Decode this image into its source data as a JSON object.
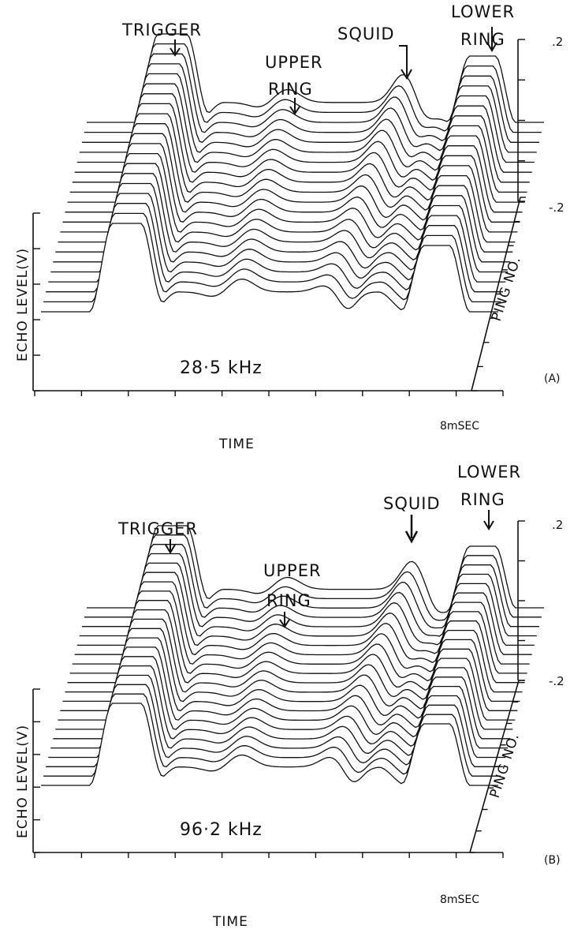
{
  "chart_data": [
    {
      "type": "waterfall-line",
      "panel_tag": "(A)",
      "frequency_label": "28·5 kHz",
      "xlabel": "TIME",
      "x_end_label": "8mSEC",
      "ylabel": "ECHO LEVEL(V)",
      "zlabel": "PING NO.",
      "y_ticks": [
        ".2",
        "-.2"
      ],
      "annotations": {
        "trigger": "TRIGGER",
        "upper_ring": [
          "UPPER",
          "RING"
        ],
        "squid": "SQUID",
        "lower_ring": [
          "LOWER",
          "RING"
        ]
      },
      "pings": 20,
      "peaks": {
        "trigger": {
          "time_ms": 1.4,
          "level_v": 0.2
        },
        "upper_ring": {
          "time_ms": 3.5,
          "level_v": 0.02
        },
        "squid_first_ping": {
          "time_ms": 5.0,
          "level_v": 0.03
        },
        "squid_last_ping": {
          "time_ms": 5.6,
          "level_v": 0.12
        },
        "lower_ring": {
          "time_ms": 6.9,
          "level_v": 0.2
        }
      }
    },
    {
      "type": "waterfall-line",
      "panel_tag": "(B)",
      "frequency_label": "96·2 kHz",
      "xlabel": "TIME",
      "x_end_label": "8mSEC",
      "ylabel": "ECHO LEVEL(V)",
      "zlabel": "PING NO.",
      "y_ticks": [
        ".2",
        "-.2"
      ],
      "annotations": {
        "trigger": "TRIGGER",
        "upper_ring": [
          "UPPER",
          "RING"
        ],
        "squid": "SQUID",
        "lower_ring": [
          "LOWER",
          "RING"
        ]
      },
      "pings": 20,
      "peaks": {
        "trigger": {
          "time_ms": 1.4,
          "level_v": 0.2
        },
        "upper_ring": {
          "time_ms": 3.5,
          "level_v": 0.02
        },
        "squid_first_ping": {
          "time_ms": 5.1,
          "level_v": 0.06
        },
        "squid_last_ping": {
          "time_ms": 5.7,
          "level_v": 0.12
        },
        "lower_ring": {
          "time_ms": 6.9,
          "level_v": 0.2
        }
      }
    }
  ]
}
